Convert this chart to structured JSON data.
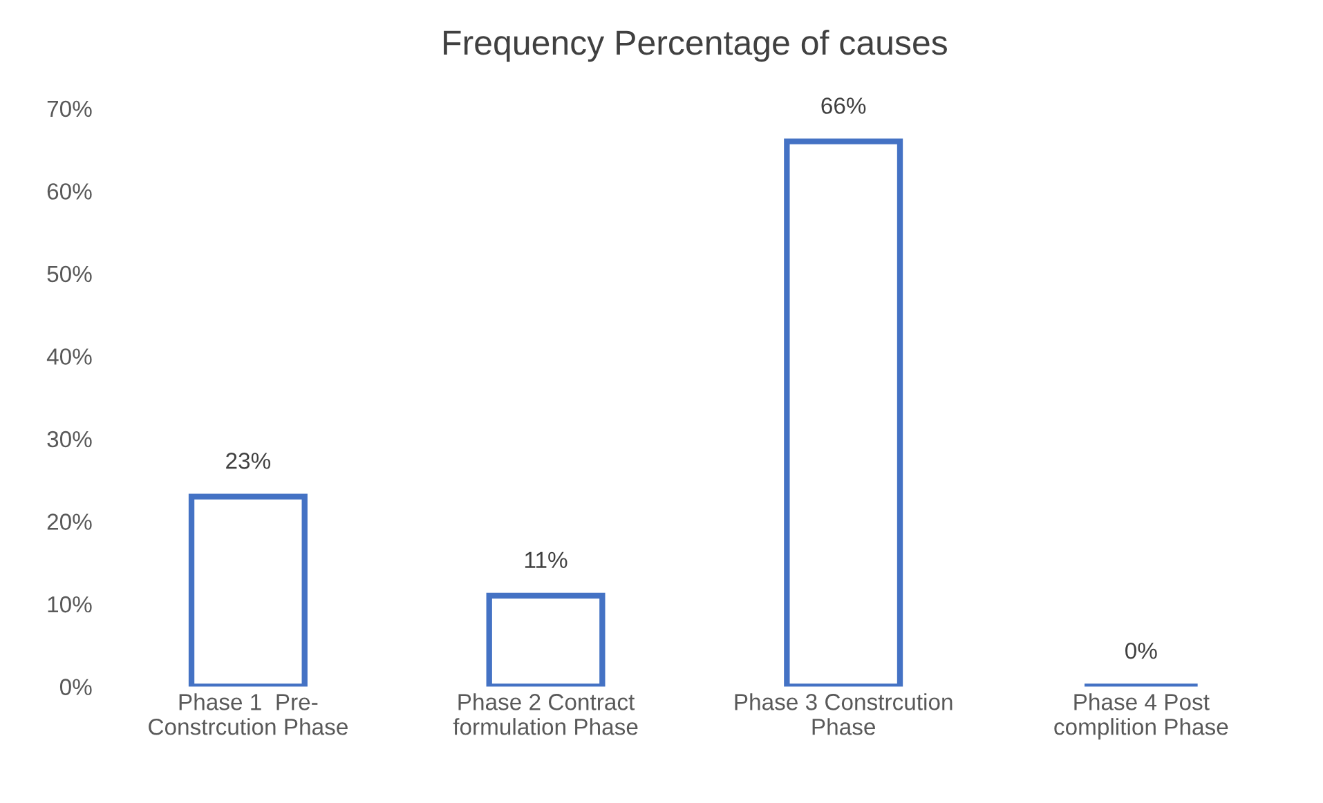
{
  "chart_data": {
    "type": "bar",
    "title": "Frequency Percentage of causes",
    "categories": [
      "Phase 1  Pre-\nConstrcution Phase",
      "Phase 2 Contract\nformulation Phase",
      "Phase 3 Constrcution\nPhase",
      "Phase 4 Post\ncomplition Phase"
    ],
    "values": [
      23,
      11,
      66,
      0
    ],
    "value_labels": [
      "23%",
      "11%",
      "66%",
      "0%"
    ],
    "color": "#4472c4",
    "ylim": [
      0,
      70
    ],
    "yticks": [
      {
        "value": 0,
        "label": "0%"
      },
      {
        "value": 10,
        "label": "10%"
      },
      {
        "value": 20,
        "label": "20%"
      },
      {
        "value": 30,
        "label": "30%"
      },
      {
        "value": 40,
        "label": "40%"
      },
      {
        "value": 50,
        "label": "50%"
      },
      {
        "value": 60,
        "label": "60%"
      },
      {
        "value": 70,
        "label": "70%"
      }
    ],
    "grid": false,
    "legend": false
  }
}
